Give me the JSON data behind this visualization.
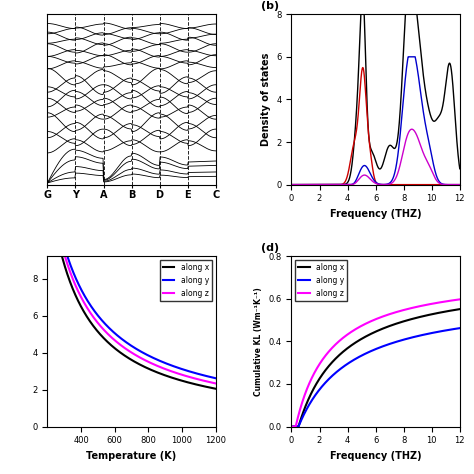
{
  "panel_a": {
    "xtick_labels": [
      "G",
      "Y",
      "A",
      "B",
      "D",
      "E",
      "C"
    ]
  },
  "panel_b": {
    "label": "(b)",
    "xlabel": "Frequency (THZ)",
    "ylabel": "Density of states",
    "xlim": [
      0,
      12
    ],
    "ylim": [
      0,
      8
    ],
    "yticks": [
      0,
      2,
      4,
      6,
      8
    ],
    "xticks": [
      0,
      2,
      4,
      6,
      8,
      10,
      12
    ]
  },
  "panel_c": {
    "xlabel": "Temperature (K)",
    "legend": [
      "along x",
      "along y",
      "along z"
    ],
    "colors": [
      "#000000",
      "#0000ff",
      "#ff00ff"
    ],
    "xticks": [
      400,
      600,
      800,
      1000,
      1200
    ]
  },
  "panel_d": {
    "label": "(d)",
    "xlabel": "Frequency (THZ)",
    "ylabel": "Cumulative KL (Wm⁻¹K⁻¹)",
    "xlim": [
      0,
      12
    ],
    "ylim": [
      0,
      0.8
    ],
    "yticks": [
      0.0,
      0.2,
      0.4,
      0.6,
      0.8
    ],
    "xticks": [
      0,
      2,
      4,
      6,
      8,
      10,
      12
    ],
    "legend": [
      "along x",
      "along y",
      "along z"
    ],
    "colors": [
      "#000000",
      "#0000ff",
      "#ff00ff"
    ]
  },
  "bg": "#ffffff"
}
